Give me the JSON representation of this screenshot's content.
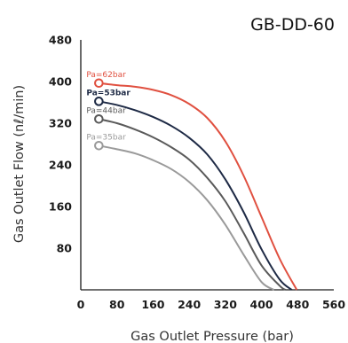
{
  "chart_data": {
    "type": "line",
    "title": "GB-DD-60",
    "xlabel": "Gas Outlet Pressure (bar)",
    "ylabel": "Gas Outlet Flow (nℓ/min)",
    "xlim": [
      0,
      560
    ],
    "ylim": [
      0,
      480
    ],
    "xticks": [
      0,
      80,
      160,
      240,
      320,
      400,
      480,
      560
    ],
    "yticks": [
      80,
      160,
      240,
      320,
      400,
      480
    ],
    "grid": false,
    "series": [
      {
        "name": "Pa=62bar",
        "color": "#e05040",
        "x": [
          40,
          80,
          120,
          160,
          200,
          240,
          280,
          320,
          360,
          400,
          440,
          478
        ],
        "y": [
          397,
          393,
          390,
          384,
          374,
          357,
          330,
          285,
          220,
          140,
          60,
          0
        ]
      },
      {
        "name": "Pa=53bar",
        "color": "#1e2a45",
        "x": [
          40,
          80,
          120,
          160,
          200,
          240,
          280,
          320,
          360,
          400,
          440,
          467
        ],
        "y": [
          362,
          355,
          345,
          332,
          315,
          292,
          260,
          212,
          150,
          78,
          20,
          0
        ]
      },
      {
        "name": "Pa=44bar",
        "color": "#5a5a5a",
        "x": [
          40,
          80,
          120,
          160,
          200,
          240,
          280,
          320,
          360,
          400,
          440,
          453
        ],
        "y": [
          328,
          320,
          308,
          293,
          274,
          250,
          215,
          170,
          110,
          47,
          8,
          0
        ]
      },
      {
        "name": "Pa=35bar",
        "color": "#9a9a9a",
        "x": [
          40,
          80,
          120,
          160,
          200,
          240,
          280,
          320,
          360,
          400,
          428
        ],
        "y": [
          277,
          270,
          262,
          249,
          232,
          207,
          172,
          125,
          68,
          15,
          0
        ]
      }
    ]
  }
}
